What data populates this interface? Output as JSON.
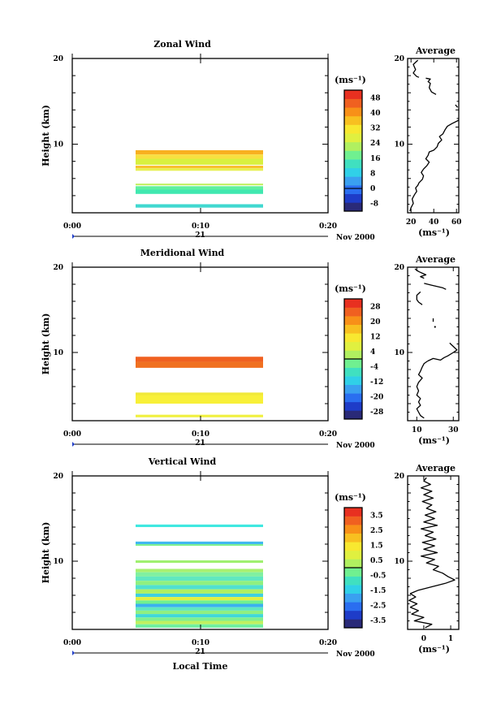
{
  "chart_data": [
    {
      "type": "heatmap",
      "title": "Zonal Wind",
      "ylabel": "Height (km)",
      "ylim": [
        2,
        20
      ],
      "yticks": [
        "10",
        "20"
      ],
      "xticks": [
        "0:00",
        "0:10",
        "0:20"
      ],
      "date_day": "21",
      "date_month": "Nov 2000",
      "colorbar": {
        "unit_label": "(ms⁻¹)",
        "ticks": [
          "-8",
          "0",
          "8",
          "16",
          "24",
          "32",
          "40",
          "48"
        ],
        "range": [
          -12,
          52
        ],
        "colors": [
          "#2a2a78",
          "#1e3cc8",
          "#2a6ef0",
          "#3aa0f0",
          "#30d0e8",
          "#40e0c0",
          "#70f090",
          "#b0f060",
          "#e0f040",
          "#f8e830",
          "#f8c020",
          "#f89018",
          "#f06020",
          "#e83020"
        ]
      },
      "bands": [
        {
          "y0": 8.8,
          "y1": 9.3,
          "color": "#f8b020"
        },
        {
          "y0": 8.3,
          "y1": 8.8,
          "color": "#f8e040"
        },
        {
          "y0": 7.6,
          "y1": 8.3,
          "color": "#d8f040"
        },
        {
          "y0": 7.2,
          "y1": 7.5,
          "color": "#f8c030"
        },
        {
          "y0": 6.9,
          "y1": 7.2,
          "color": "#e8f050"
        },
        {
          "y0": 5.2,
          "y1": 5.4,
          "color": "#c0f060"
        },
        {
          "y0": 4.7,
          "y1": 5.1,
          "color": "#60f0a0"
        },
        {
          "y0": 4.2,
          "y1": 4.7,
          "color": "#40e8b0"
        },
        {
          "y0": 2.6,
          "y1": 3.0,
          "color": "#40d8d0"
        }
      ],
      "average": {
        "title": "Average",
        "xlim": [
          17,
          62
        ],
        "xticks": [
          "20",
          "40",
          "60"
        ],
        "xlabel": "(ms⁻¹)",
        "segments": [
          [
            [
              26,
              19.8
            ],
            [
              22,
              19.3
            ],
            [
              24,
              18.7
            ],
            [
              22,
              18.3
            ],
            [
              25,
              17.9
            ],
            [
              27,
              17.8
            ]
          ],
          [
            [
              33,
              17.7
            ],
            [
              37,
              17.6
            ],
            [
              35,
              17.3
            ],
            [
              37,
              17.1
            ],
            [
              36,
              16.6
            ],
            [
              38,
              16.1
            ],
            [
              42,
              15.8
            ]
          ],
          [
            [
              59,
              14.6
            ],
            [
              61,
              14.3
            ]
          ],
          [
            [
              62,
              12.8
            ],
            [
              56,
              12.4
            ],
            [
              52,
              12.1
            ],
            [
              50,
              11.7
            ],
            [
              48,
              11.2
            ],
            [
              45,
              10.9
            ],
            [
              47,
              10.5
            ],
            [
              44,
              10.1
            ],
            [
              43,
              9.7
            ],
            [
              40,
              9.3
            ],
            [
              36,
              9.1
            ],
            [
              35,
              8.7
            ],
            [
              33,
              8.3
            ],
            [
              36,
              7.9
            ],
            [
              34,
              7.5
            ],
            [
              31,
              7.1
            ],
            [
              29,
              6.7
            ],
            [
              31,
              6.3
            ],
            [
              30,
              5.9
            ],
            [
              27,
              5.5
            ],
            [
              26,
              5.2
            ],
            [
              24,
              4.9
            ],
            [
              25,
              4.5
            ],
            [
              23,
              4.1
            ],
            [
              21,
              3.6
            ],
            [
              22,
              3.1
            ],
            [
              20,
              2.6
            ],
            [
              19,
              2.2
            ]
          ]
        ]
      }
    },
    {
      "type": "heatmap",
      "title": "Meridional Wind",
      "ylabel": "Height (km)",
      "ylim": [
        2,
        20
      ],
      "yticks": [
        "10",
        "20"
      ],
      "xticks": [
        "0:00",
        "0:10",
        "0:20"
      ],
      "date_day": "21",
      "date_month": "Nov 2000",
      "colorbar": {
        "unit_label": "(ms⁻¹)",
        "ticks": [
          "-28",
          "-20",
          "-12",
          "-4",
          "4",
          "12",
          "20",
          "28"
        ],
        "range": [
          -32,
          32
        ],
        "colors": [
          "#2a2a78",
          "#1e3cc8",
          "#2a6ef0",
          "#3aa0f0",
          "#30d0e8",
          "#40e0c0",
          "#70f090",
          "#b0f060",
          "#e0f040",
          "#f8e830",
          "#f8c020",
          "#f89018",
          "#f06020",
          "#e83020"
        ]
      },
      "bands": [
        {
          "y0": 8.9,
          "y1": 9.5,
          "color": "#f06020"
        },
        {
          "y0": 8.2,
          "y1": 8.9,
          "color": "#f07020"
        },
        {
          "y0": 5.0,
          "y1": 5.3,
          "color": "#f0e838"
        },
        {
          "y0": 4.0,
          "y1": 5.0,
          "color": "#f8f038"
        },
        {
          "y0": 2.4,
          "y1": 2.7,
          "color": "#f0f040"
        }
      ],
      "average": {
        "title": "Average",
        "xlim": [
          5,
          33
        ],
        "xticks": [
          "10",
          "30"
        ],
        "xlabel": "(ms⁻¹)",
        "segments": [
          [
            [
              9,
              19.8
            ],
            [
              11,
              19.5
            ],
            [
              15,
              19.1
            ],
            [
              12,
              18.9
            ],
            [
              14,
              18.7
            ]
          ],
          [
            [
              14,
              18.1
            ],
            [
              18,
              17.9
            ],
            [
              24,
              17.6
            ],
            [
              26,
              17.4
            ]
          ],
          [
            [
              12,
              17.1
            ],
            [
              10,
              16.7
            ],
            [
              10,
              16.2
            ],
            [
              11,
              15.9
            ],
            [
              13,
              15.6
            ]
          ],
          [
            [
              19,
              14.0
            ],
            [
              19,
              13.6
            ]
          ],
          [
            [
              20,
              13.0
            ]
          ],
          [
            [
              16,
              9.0
            ],
            [
              19,
              9.3
            ],
            [
              23,
              9.1
            ],
            [
              25,
              9.4
            ],
            [
              27,
              9.6
            ],
            [
              30,
              10.0
            ],
            [
              32,
              10.3
            ],
            [
              30,
              10.7
            ],
            [
              28,
              11.1
            ]
          ],
          [
            [
              16,
              9.0
            ],
            [
              14,
              8.7
            ],
            [
              13,
              8.3
            ],
            [
              12,
              7.8
            ],
            [
              11,
              7.4
            ],
            [
              13,
              7.0
            ],
            [
              11,
              6.5
            ],
            [
              10,
              6.0
            ],
            [
              11,
              5.5
            ],
            [
              10,
              5.0
            ],
            [
              12,
              4.6
            ],
            [
              11,
              4.2
            ],
            [
              12,
              3.8
            ],
            [
              10,
              3.4
            ],
            [
              11,
              3.0
            ],
            [
              12,
              2.6
            ],
            [
              14,
              2.3
            ]
          ]
        ]
      }
    },
    {
      "type": "heatmap",
      "title": "Vertical Wind",
      "ylabel": "Height (km)",
      "ylim": [
        2,
        20
      ],
      "yticks": [
        "10",
        "20"
      ],
      "xticks": [
        "0:00",
        "0:10",
        "0:20"
      ],
      "xlabel": "Local Time",
      "date_day": "21",
      "date_month": "Nov 2000",
      "colorbar": {
        "unit_label": "(ms⁻¹)",
        "ticks": [
          "-3.5",
          "-2.5",
          "-1.5",
          "-0.5",
          "0.5",
          "1.5",
          "2.5",
          "3.5"
        ],
        "range": [
          -4,
          4
        ],
        "colors": [
          "#2a2a78",
          "#1e3cc8",
          "#2a6ef0",
          "#3aa0f0",
          "#30d0e8",
          "#40e0c0",
          "#70f090",
          "#b0f060",
          "#e0f040",
          "#f8e830",
          "#f8c020",
          "#f89018",
          "#f06020",
          "#e83020"
        ]
      },
      "bands": [
        {
          "y0": 14.0,
          "y1": 14.3,
          "color": "#40e8e0"
        },
        {
          "y0": 12.0,
          "y1": 12.3,
          "color": "#40b8f0"
        },
        {
          "y0": 11.8,
          "y1": 12.0,
          "color": "#80f090"
        },
        {
          "y0": 9.8,
          "y1": 10.1,
          "color": "#a0f070"
        },
        {
          "y0": 8.7,
          "y1": 9.1,
          "color": "#a8f070"
        },
        {
          "y0": 8.2,
          "y1": 8.7,
          "color": "#80f0a0"
        },
        {
          "y0": 7.7,
          "y1": 8.2,
          "color": "#60e8c0"
        },
        {
          "y0": 7.2,
          "y1": 7.7,
          "color": "#90f080"
        },
        {
          "y0": 6.7,
          "y1": 7.2,
          "color": "#50e0d0"
        },
        {
          "y0": 6.2,
          "y1": 6.7,
          "color": "#b0f060"
        },
        {
          "y0": 5.8,
          "y1": 6.2,
          "color": "#40d0e0"
        },
        {
          "y0": 5.4,
          "y1": 5.8,
          "color": "#e0f040"
        },
        {
          "y0": 5.0,
          "y1": 5.4,
          "color": "#70f090"
        },
        {
          "y0": 4.6,
          "y1": 5.0,
          "color": "#3ab0f0"
        },
        {
          "y0": 4.2,
          "y1": 4.6,
          "color": "#60e8c0"
        },
        {
          "y0": 3.8,
          "y1": 4.2,
          "color": "#90f080"
        },
        {
          "y0": 3.4,
          "y1": 3.8,
          "color": "#40d8d8"
        },
        {
          "y0": 3.0,
          "y1": 3.4,
          "color": "#80f090"
        },
        {
          "y0": 2.6,
          "y1": 3.0,
          "color": "#c0f060"
        },
        {
          "y0": 2.2,
          "y1": 2.6,
          "color": "#70f0a0"
        }
      ],
      "average": {
        "title": "Average",
        "xlim": [
          -0.6,
          1.3
        ],
        "xticks": [
          "0",
          "1"
        ],
        "xlabel": "(ms⁻¹)",
        "segments": [
          [
            [
              0.1,
              19.8
            ],
            [
              0.0,
              19.4
            ],
            [
              0.25,
              19.0
            ],
            [
              -0.1,
              18.6
            ],
            [
              0.3,
              18.2
            ],
            [
              0.0,
              17.8
            ],
            [
              0.35,
              17.4
            ],
            [
              -0.05,
              17.0
            ],
            [
              0.3,
              16.6
            ],
            [
              0.1,
              16.2
            ],
            [
              0.45,
              15.8
            ],
            [
              0.05,
              15.4
            ],
            [
              0.4,
              15.0
            ],
            [
              0.0,
              14.6
            ],
            [
              0.5,
              14.2
            ],
            [
              -0.1,
              13.8
            ],
            [
              0.35,
              13.4
            ],
            [
              0.05,
              13.0
            ],
            [
              0.45,
              12.6
            ],
            [
              -0.05,
              12.2
            ],
            [
              0.4,
              11.8
            ],
            [
              0.0,
              11.4
            ],
            [
              0.5,
              11.0
            ],
            [
              -0.1,
              10.6
            ],
            [
              0.4,
              10.2
            ],
            [
              0.1,
              9.8
            ],
            [
              0.55,
              9.4
            ],
            [
              0.35,
              9.0
            ],
            [
              0.7,
              8.6
            ],
            [
              0.9,
              8.2
            ],
            [
              1.15,
              7.8
            ],
            [
              0.8,
              7.4
            ],
            [
              0.3,
              7.0
            ],
            [
              -0.2,
              6.6
            ],
            [
              -0.5,
              6.2
            ],
            [
              -0.3,
              5.8
            ],
            [
              -0.55,
              5.4
            ],
            [
              -0.25,
              5.0
            ],
            [
              -0.5,
              4.6
            ],
            [
              -0.2,
              4.2
            ],
            [
              -0.45,
              3.8
            ],
            [
              0.0,
              3.4
            ],
            [
              -0.35,
              3.0
            ],
            [
              0.3,
              2.6
            ],
            [
              0.05,
              2.2
            ]
          ]
        ]
      }
    }
  ]
}
